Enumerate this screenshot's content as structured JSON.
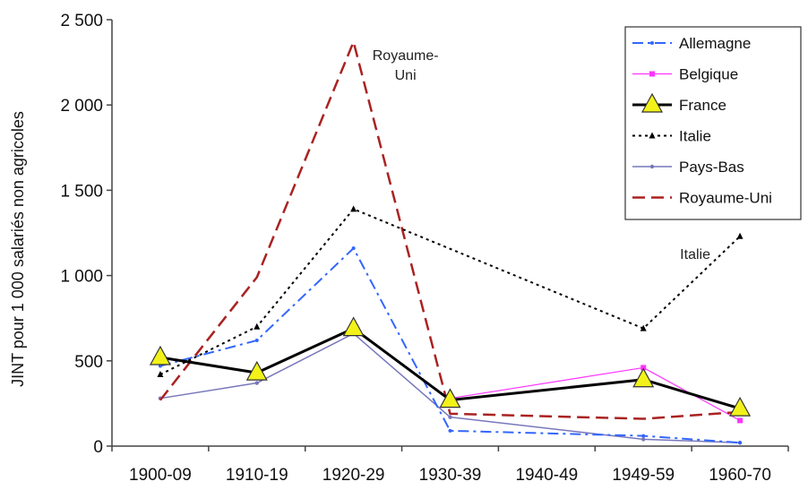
{
  "chart_data": {
    "type": "line",
    "ylabel": "JINT pour 1 000 salariés non agricoles",
    "categories": [
      "1900-09",
      "1910-19",
      "1920-29",
      "1930-39",
      "1940-49",
      "1949-59",
      "1960-70"
    ],
    "y_tick_labels": [
      "0",
      "500",
      "1 000",
      "1 500",
      "2 000",
      "2 500"
    ],
    "ylim": [
      0,
      2500
    ],
    "grid": false,
    "legend_position": "top-right",
    "series": [
      {
        "name": "Allemagne",
        "color": "#3366ff",
        "style": "dashdot",
        "values": [
          470,
          620,
          1160,
          90,
          null,
          60,
          20
        ]
      },
      {
        "name": "Belgique",
        "color": "#ff33ff",
        "style": "solid-thin-square",
        "values": [
          null,
          null,
          null,
          280,
          null,
          460,
          150
        ]
      },
      {
        "name": "France",
        "color": "#000000",
        "style": "solid-thick-triangle",
        "values": [
          520,
          430,
          690,
          270,
          null,
          390,
          220
        ]
      },
      {
        "name": "Italie",
        "color": "#000000",
        "style": "dotted",
        "values": [
          420,
          700,
          1390,
          null,
          null,
          690,
          1230
        ]
      },
      {
        "name": "Pays-Bas",
        "color": "#7777bb",
        "style": "solid-thin",
        "values": [
          280,
          370,
          660,
          170,
          null,
          40,
          20
        ]
      },
      {
        "name": "Royaume-Uni",
        "color": "#aa2222",
        "style": "dashed",
        "values": [
          270,
          990,
          2370,
          190,
          null,
          160,
          200
        ]
      }
    ],
    "annotations": [
      {
        "text": "Royaume-\nUni",
        "lines": [
          "Royaume-",
          "Uni"
        ],
        "category": "1920-29"
      },
      {
        "text": "Italie",
        "category": "1960-70"
      }
    ]
  }
}
